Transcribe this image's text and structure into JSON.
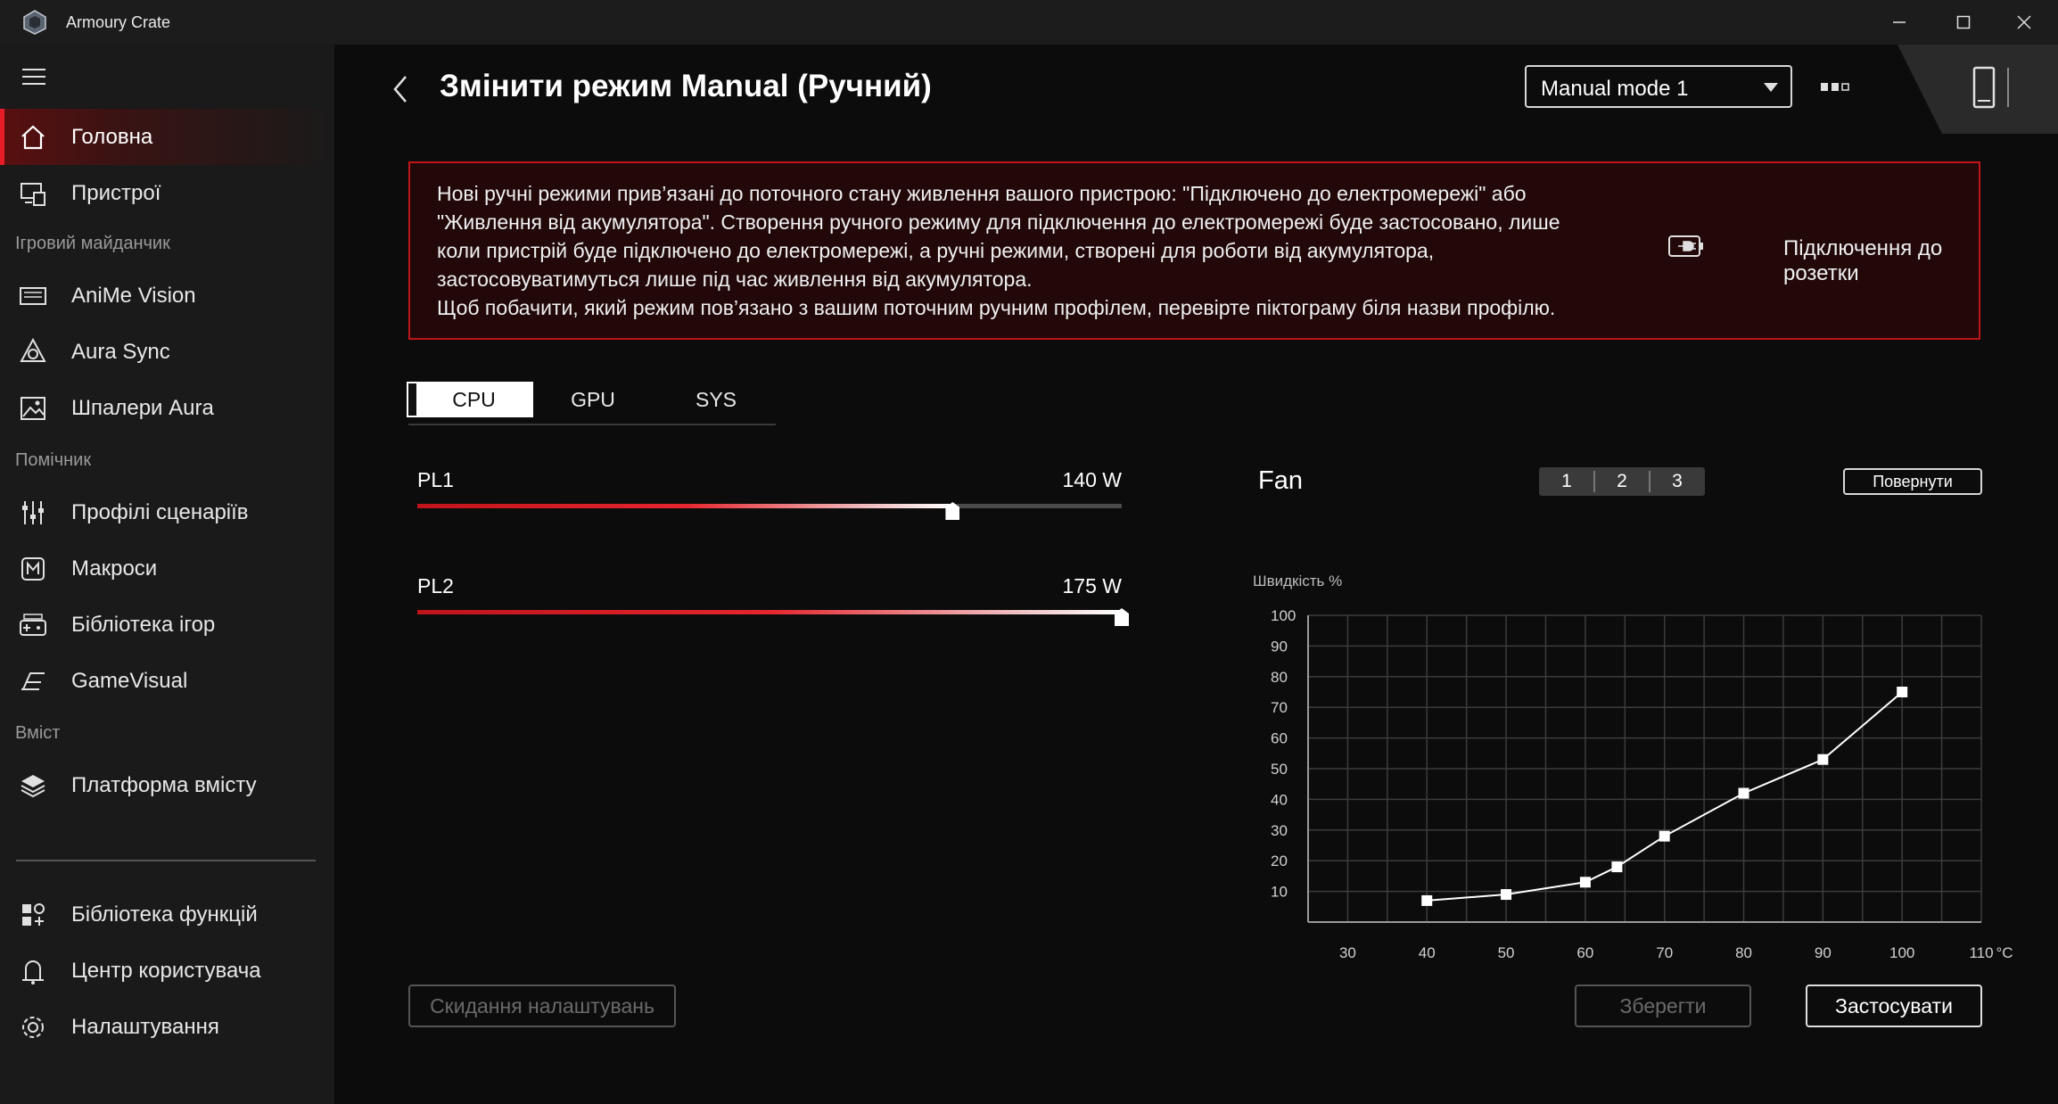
{
  "window": {
    "title": "Armoury Crate"
  },
  "sidebar": {
    "items": [
      {
        "label": "Головна",
        "icon": "home-icon"
      },
      {
        "label": "Пристрої",
        "icon": "devices-icon"
      },
      {
        "label": "AniMe Vision",
        "icon": "anime-vision-icon"
      },
      {
        "label": "Aura Sync",
        "icon": "aura-sync-icon"
      },
      {
        "label": "Шпалери Aura",
        "icon": "wallpaper-icon"
      },
      {
        "label": "Профілі сценаріїв",
        "icon": "scenario-profiles-icon"
      },
      {
        "label": "Макроси",
        "icon": "macro-icon"
      },
      {
        "label": "Бібліотека ігор",
        "icon": "game-library-icon"
      },
      {
        "label": "GameVisual",
        "icon": "gamevisual-icon"
      },
      {
        "label": "Платформа вмісту",
        "icon": "content-platform-icon"
      },
      {
        "label": "Бібліотека функцій",
        "icon": "feature-library-icon"
      },
      {
        "label": "Центр користувача",
        "icon": "user-center-icon"
      },
      {
        "label": "Налаштування",
        "icon": "settings-icon"
      }
    ],
    "sections": [
      "Ігровий майданчик",
      "Помічник",
      "Вміст"
    ]
  },
  "header": {
    "title": "Змінити режим Manual (Ручний)",
    "mode_select": "Manual mode 1"
  },
  "notice": {
    "lines": [
      "Нові ручні режими прив’язані до поточного стану живлення вашого пристрою: \"Підключено до електромережі\" або",
      "\"Живлення від акумулятора\". Створення ручного режиму для підключення до електромережі буде застосовано, лише",
      "коли пристрій буде підключено до електромережі, а ручні режими, створені для роботи від акумулятора,",
      "застосовуватимуться лише під час живлення від акумулятора.",
      "Щоб побачити, який режим пов’язано з вашим поточним ручним профілем, перевірте піктограму біля назви профілю."
    ],
    "power_state": "Підключення до розетки"
  },
  "tabs": [
    "CPU",
    "GPU",
    "SYS"
  ],
  "sliders": [
    {
      "label": "PL1",
      "value": "140 W",
      "fraction": 0.76
    },
    {
      "label": "PL2",
      "value": "175 W",
      "fraction": 1.0
    }
  ],
  "fan": {
    "title": "Fan",
    "segments": [
      "1",
      "2",
      "3"
    ],
    "revert_label": "Повернути"
  },
  "chart_data": {
    "type": "line",
    "ylabel": "Швидкість %",
    "xunit": "°C",
    "x_ticks": [
      30,
      40,
      50,
      60,
      70,
      80,
      90,
      100,
      110
    ],
    "y_ticks": [
      10,
      20,
      30,
      40,
      50,
      60,
      70,
      80,
      90,
      100
    ],
    "xlim": [
      25,
      110
    ],
    "ylim": [
      0,
      100
    ],
    "grid": true,
    "series": [
      {
        "x": [
          40,
          50,
          60,
          64,
          70,
          80,
          90,
          100
        ],
        "y": [
          7,
          9,
          13,
          18,
          28,
          42,
          53,
          75
        ]
      }
    ],
    "colors": {
      "line": "#ffffff",
      "grid": "#3c3c3c",
      "axis": "#9a9a9a"
    }
  },
  "footer": {
    "reset_label": "Скидання налаштувань",
    "save_label": "Зберегти",
    "apply_label": "Застосувати"
  },
  "colors": {
    "accent": "#e81d2a",
    "notice_border": "#c0141b",
    "background": "#0c0c0c",
    "sidebar": "#1a1a1a"
  }
}
